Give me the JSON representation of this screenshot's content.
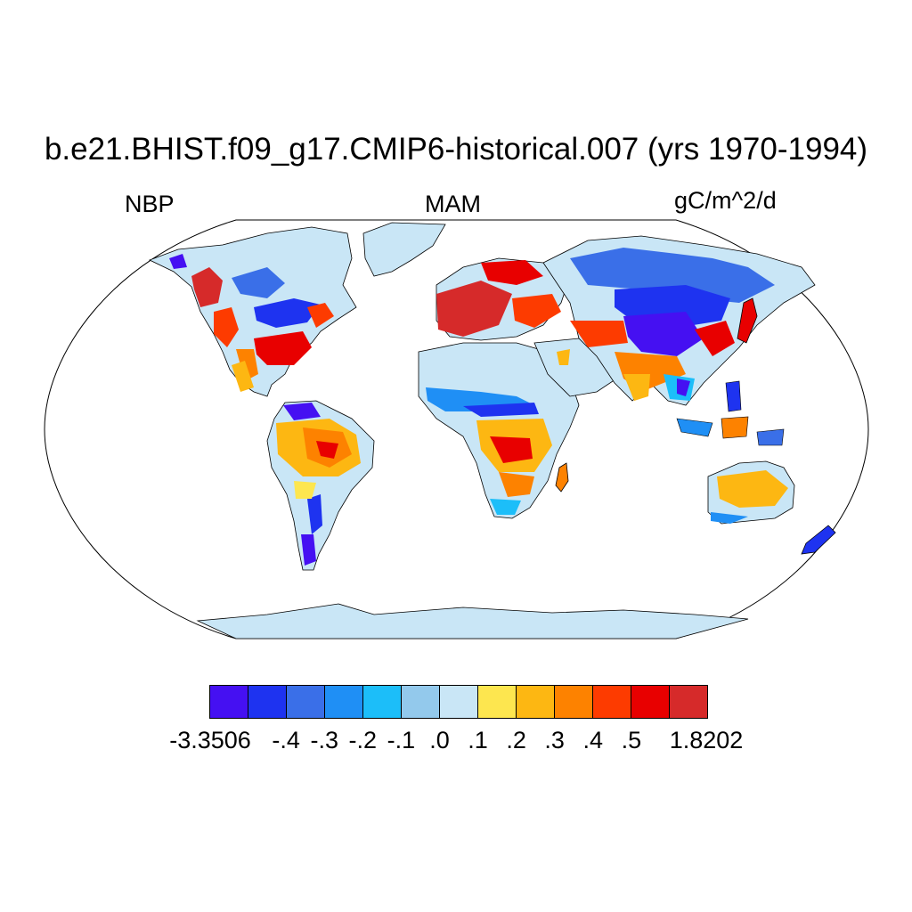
{
  "title": "b.e21.BHIST.f09_g17.CMIP6-historical.007 (yrs 1970-1994)",
  "left_label": "NBP",
  "center_label": "MAM",
  "right_label": "gC/m^2/d",
  "colorbar": {
    "colors": [
      "#4510f2",
      "#1e33f0",
      "#3a6fe8",
      "#1f8ff5",
      "#1cbef9",
      "#93c9ec",
      "#c9e6f6",
      "#fde64f",
      "#fdb712",
      "#fd8200",
      "#fd3b00",
      "#e80000",
      "#d62a2a"
    ],
    "labels": [
      "-3.3506",
      "-.4",
      "-.3",
      "-.2",
      "-.1",
      ".0",
      ".1",
      ".2",
      ".3",
      ".4",
      ".5",
      "1.8202"
    ]
  },
  "map": {
    "projection": "Robinson",
    "ocean_color": "#ffffff",
    "land_default_color": "#c9e6f6"
  }
}
